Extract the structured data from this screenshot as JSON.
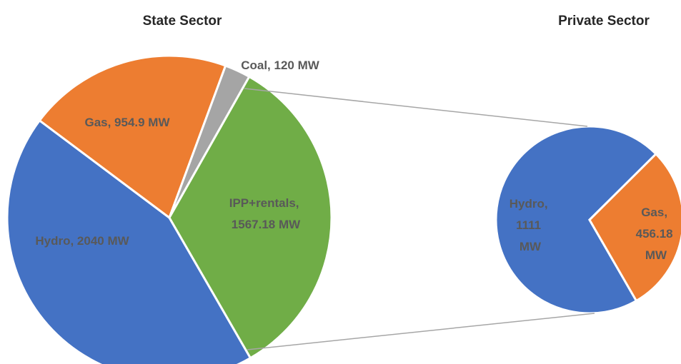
{
  "chart_data": [
    {
      "type": "pie",
      "title": "State Sector",
      "categories": [
        "Hydro",
        "Gas",
        "Coal",
        "IPP+rentals"
      ],
      "values": [
        2040,
        954.9,
        120,
        1567.18
      ],
      "value_labels": [
        "Hydro, 2040 MW",
        "Gas, 954.9 MW",
        "Coal, 120 MW",
        "IPP+rentals, 1567.18 MW"
      ],
      "colors": [
        "#4472c4",
        "#ed7d31",
        "#a5a5a5",
        "#70ad47"
      ]
    },
    {
      "type": "pie",
      "title": "Private Sector",
      "categories": [
        "Hydro",
        "Gas"
      ],
      "values": [
        1111,
        456.18
      ],
      "value_labels": [
        "Hydro, 1111 MW",
        "Gas, 456.18 MW"
      ],
      "colors": [
        "#4472c4",
        "#ed7d31"
      ]
    }
  ]
}
